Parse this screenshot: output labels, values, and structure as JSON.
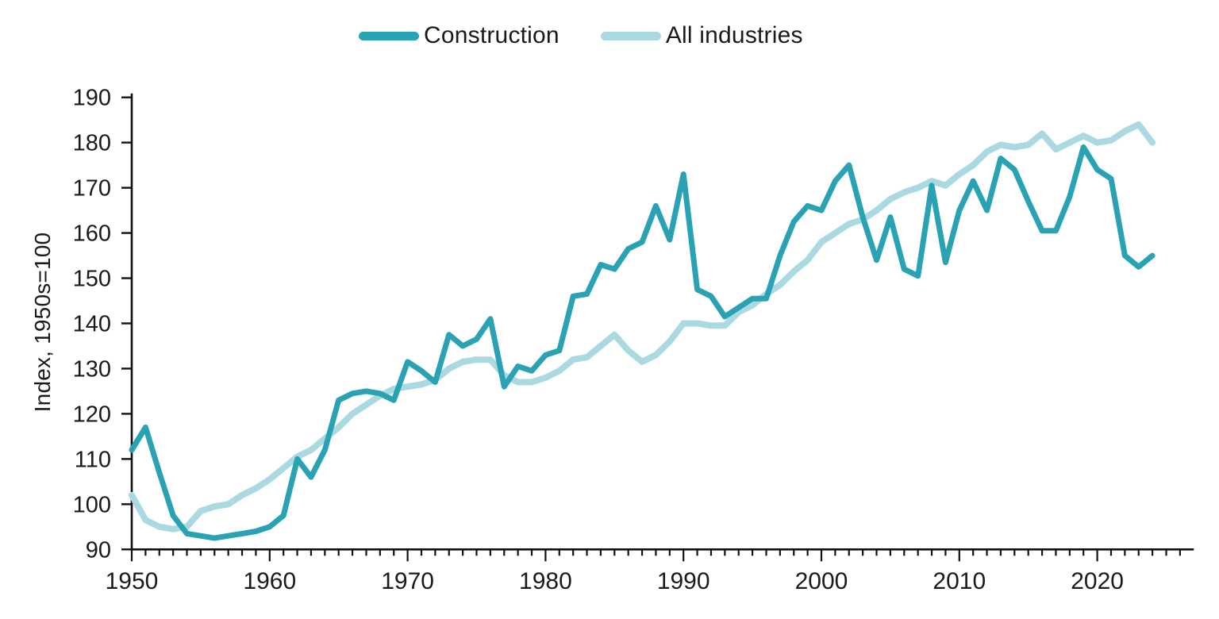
{
  "legend": {
    "items": [
      {
        "label": "Construction",
        "color": "#29A3B4"
      },
      {
        "label": "All industries",
        "color": "#ABD9E2"
      }
    ]
  },
  "y_axis_title": "Index, 1950s=100",
  "chart_data": {
    "type": "line",
    "title": "",
    "xlabel": "",
    "ylabel": "Index, 1950s=100",
    "x_start": 1950,
    "x_end": 2024,
    "xlim": [
      1950,
      2027
    ],
    "ylim": [
      90,
      190
    ],
    "x_ticks": [
      1950,
      1960,
      1970,
      1980,
      1990,
      2000,
      2010,
      2020
    ],
    "y_ticks": [
      90,
      100,
      110,
      120,
      130,
      140,
      150,
      160,
      170,
      180,
      190
    ],
    "grid": "off",
    "legend_position": "top",
    "series": [
      {
        "name": "All industries",
        "color": "#ABD9E2",
        "values": [
          102,
          96.5,
          95,
          94.5,
          95,
          98.5,
          99.5,
          100,
          102,
          103.5,
          105.5,
          108,
          110.5,
          112,
          114.5,
          117,
          120,
          122,
          124,
          125.5,
          126,
          126.5,
          127.5,
          130,
          131.5,
          132,
          132,
          128.5,
          127,
          127,
          128,
          129.5,
          132,
          132.5,
          135,
          137.5,
          134,
          131.5,
          133,
          136,
          140,
          140,
          139.5,
          139.5,
          142.5,
          144,
          146.5,
          148.5,
          151.5,
          154,
          158,
          160,
          162,
          163,
          165,
          167.5,
          169,
          170,
          171.5,
          170.5,
          173,
          175,
          178,
          179.5,
          179,
          179.5,
          182,
          178.5,
          180,
          181.5,
          180,
          180.5,
          182.5,
          184,
          180
        ]
      },
      {
        "name": "Construction",
        "color": "#29A3B4",
        "values": [
          112,
          117,
          107,
          97.5,
          93.5,
          93,
          92.5,
          93,
          93.5,
          94,
          95,
          97.5,
          110,
          106,
          112,
          123,
          124.5,
          125,
          124.5,
          123,
          131.5,
          129.5,
          127,
          137.5,
          135,
          136.5,
          141,
          126,
          130.5,
          129.5,
          133,
          134,
          146,
          146.5,
          153,
          152,
          156.5,
          158,
          166,
          158.5,
          173,
          147.5,
          146,
          141.5,
          143.5,
          145.5,
          145.5,
          155,
          162.5,
          166,
          165,
          171.5,
          175,
          163.5,
          154,
          163.5,
          152,
          150.5,
          170.5,
          153.5,
          165,
          171.5,
          165,
          176.5,
          174,
          167,
          160.5,
          160.5,
          168,
          179,
          174,
          172,
          155,
          152.5,
          155
        ]
      }
    ]
  }
}
